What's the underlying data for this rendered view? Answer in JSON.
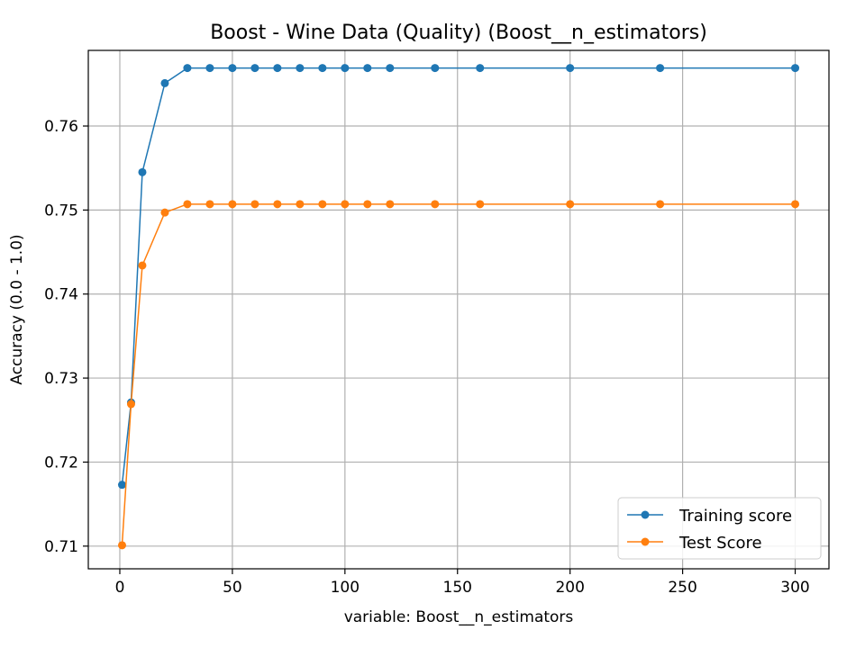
{
  "chart_data": {
    "type": "line",
    "title": "Boost - Wine Data (Quality) (Boost__n_estimators)",
    "xlabel": "variable: Boost__n_estimators",
    "ylabel": "Accuracy (0.0 - 1.0)",
    "xlim": [
      -14,
      315
    ],
    "ylim": [
      0.7073,
      0.769
    ],
    "x_ticks": [
      0,
      50,
      100,
      150,
      200,
      250,
      300
    ],
    "y_ticks": [
      0.71,
      0.72,
      0.73,
      0.74,
      0.75,
      0.76
    ],
    "y_tick_labels": [
      "0.71",
      "0.72",
      "0.73",
      "0.74",
      "0.75",
      "0.76"
    ],
    "grid": true,
    "legend_position": "bottom-right",
    "x": [
      1,
      5,
      10,
      20,
      30,
      40,
      50,
      60,
      70,
      80,
      90,
      100,
      110,
      120,
      140,
      160,
      200,
      240,
      300
    ],
    "series": [
      {
        "name": "Training score",
        "color": "#1f77b4",
        "values": [
          0.7173,
          0.7271,
          0.7545,
          0.7651,
          0.7669,
          0.7669,
          0.7669,
          0.7669,
          0.7669,
          0.7669,
          0.7669,
          0.7669,
          0.7669,
          0.7669,
          0.7669,
          0.7669,
          0.7669,
          0.7669,
          0.7669
        ]
      },
      {
        "name": "Test Score",
        "color": "#ff7f0e",
        "values": [
          0.7101,
          0.7269,
          0.7434,
          0.7497,
          0.7507,
          0.7507,
          0.7507,
          0.7507,
          0.7507,
          0.7507,
          0.7507,
          0.7507,
          0.7507,
          0.7507,
          0.7507,
          0.7507,
          0.7507,
          0.7507,
          0.7507
        ]
      }
    ]
  }
}
